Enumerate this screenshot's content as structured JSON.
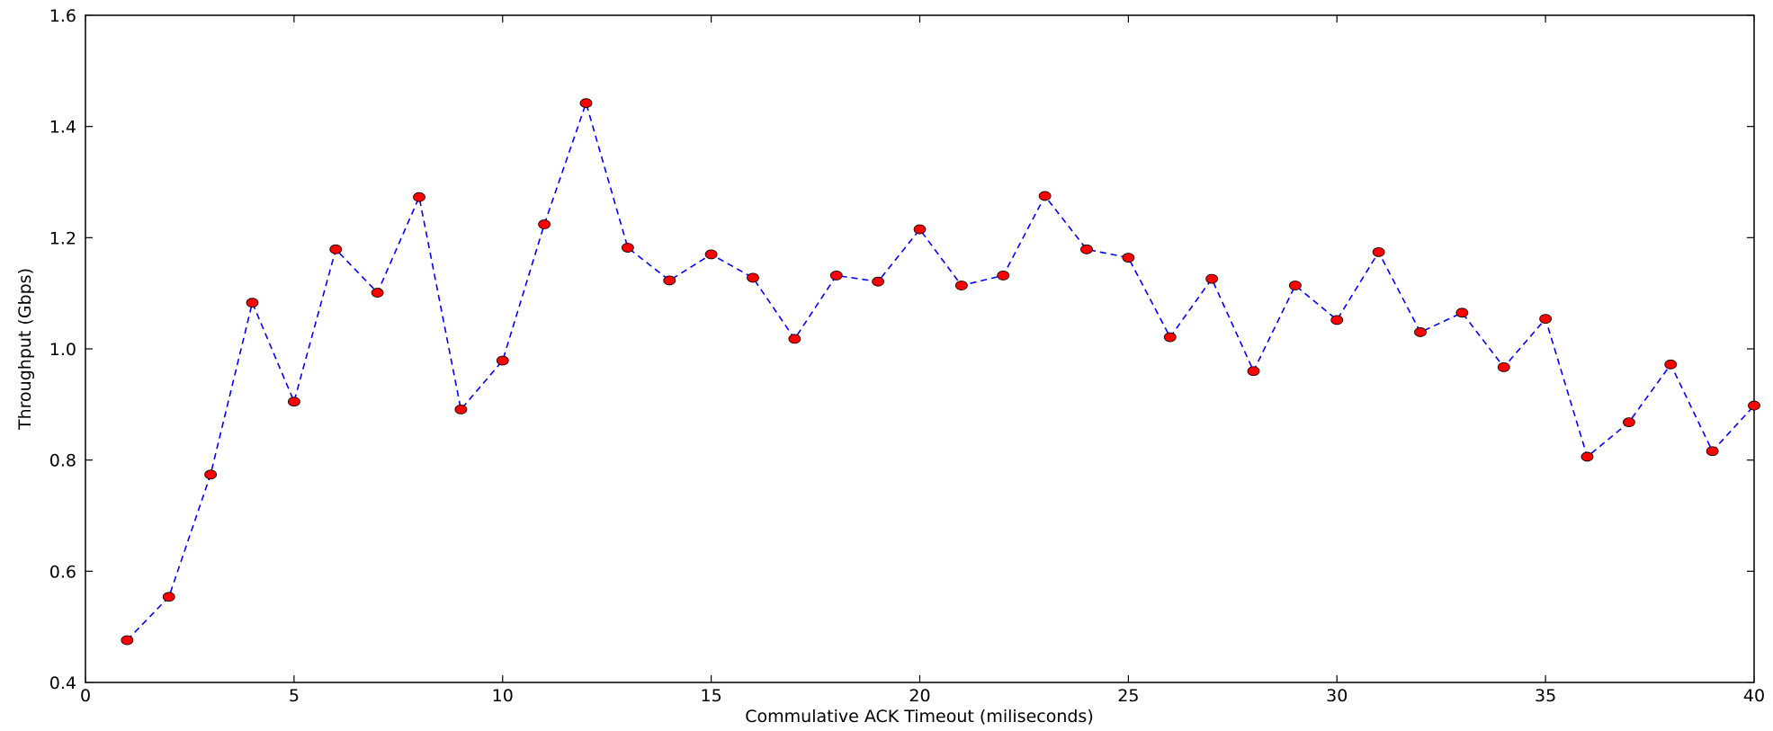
{
  "chart_data": {
    "type": "line",
    "title": "",
    "xlabel": "Commulative ACK Timeout (miliseconds)",
    "ylabel": "Throughput (Gbps)",
    "xlim": [
      0,
      40
    ],
    "ylim": [
      0.4,
      1.6
    ],
    "xticks": [
      0,
      5,
      10,
      15,
      20,
      25,
      30,
      35,
      40
    ],
    "yticks": [
      0.4,
      0.6,
      0.8,
      1.0,
      1.2,
      1.4,
      1.6
    ],
    "xtick_labels": [
      "0",
      "5",
      "10",
      "15",
      "20",
      "25",
      "30",
      "35",
      "40"
    ],
    "ytick_labels": [
      "0.4",
      "0.6",
      "0.8",
      "1.0",
      "1.2",
      "1.4",
      "1.6"
    ],
    "grid": false,
    "legend": "none",
    "series": [
      {
        "line_color": "#0000ff",
        "line_style": "dashed",
        "marker_color": "#ff0000",
        "marker": "circle",
        "x": [
          1,
          2,
          3,
          4,
          5,
          6,
          7,
          8,
          9,
          10,
          11,
          12,
          13,
          14,
          15,
          16,
          17,
          18,
          19,
          20,
          21,
          22,
          23,
          24,
          25,
          26,
          27,
          28,
          29,
          30,
          31,
          32,
          33,
          34,
          35,
          36,
          37,
          38,
          39,
          40
        ],
        "y": [
          0.476,
          0.554,
          0.774,
          1.083,
          0.905,
          1.179,
          1.101,
          1.273,
          0.891,
          0.979,
          1.224,
          1.442,
          1.182,
          1.123,
          1.17,
          1.128,
          1.018,
          1.132,
          1.121,
          1.215,
          1.114,
          1.132,
          1.275,
          1.179,
          1.164,
          1.021,
          1.126,
          0.96,
          1.114,
          1.052,
          1.174,
          1.03,
          1.065,
          0.967,
          1.054,
          0.806,
          0.868,
          0.972,
          0.816,
          0.898
        ]
      }
    ]
  }
}
